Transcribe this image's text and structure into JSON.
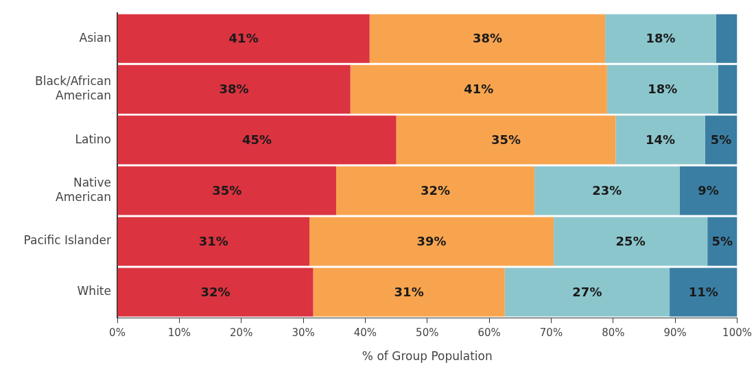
{
  "chart_data": {
    "type": "bar",
    "orientation": "horizontal",
    "stacked": true,
    "categories": [
      "Asian",
      "Black/African American",
      "Latino",
      "Native American",
      "Pacific Islander",
      "White"
    ],
    "series": [
      {
        "color": "#db3340",
        "values": [
          40.7,
          37.6,
          45.0,
          35.3,
          31.0,
          31.6
        ],
        "value_labels": [
          "41%",
          "38%",
          "45%",
          "35%",
          "31%",
          "32%"
        ]
      },
      {
        "color": "#f8a44f",
        "values": [
          38.0,
          41.4,
          35.4,
          32.0,
          39.4,
          30.9
        ],
        "value_labels": [
          "38%",
          "41%",
          "35%",
          "32%",
          "39%",
          "31%"
        ]
      },
      {
        "color": "#8cc6cd",
        "values": [
          17.9,
          17.9,
          14.4,
          23.4,
          24.8,
          26.6
        ],
        "value_labels": [
          "18%",
          "18%",
          "14%",
          "23%",
          "25%",
          "27%"
        ]
      },
      {
        "color": "#3b7ea3",
        "values": [
          3.4,
          3.1,
          5.2,
          9.3,
          4.8,
          10.9
        ],
        "value_labels": [
          null,
          null,
          "5%",
          "9%",
          "5%",
          "11%"
        ]
      }
    ],
    "xlim": [
      0,
      100
    ],
    "xticks": [
      {
        "value": 0,
        "label": "0%"
      },
      {
        "value": 10,
        "label": "10%"
      },
      {
        "value": 20,
        "label": "20%"
      },
      {
        "value": 30,
        "label": "30%"
      },
      {
        "value": 40,
        "label": "40%"
      },
      {
        "value": 50,
        "label": "50%"
      },
      {
        "value": 60,
        "label": "60%"
      },
      {
        "value": 70,
        "label": "70%"
      },
      {
        "value": 80,
        "label": "80%"
      },
      {
        "value": 90,
        "label": "90%"
      },
      {
        "value": 100,
        "label": "100%"
      }
    ],
    "xlabel": "% of Group Population",
    "grid": false
  }
}
